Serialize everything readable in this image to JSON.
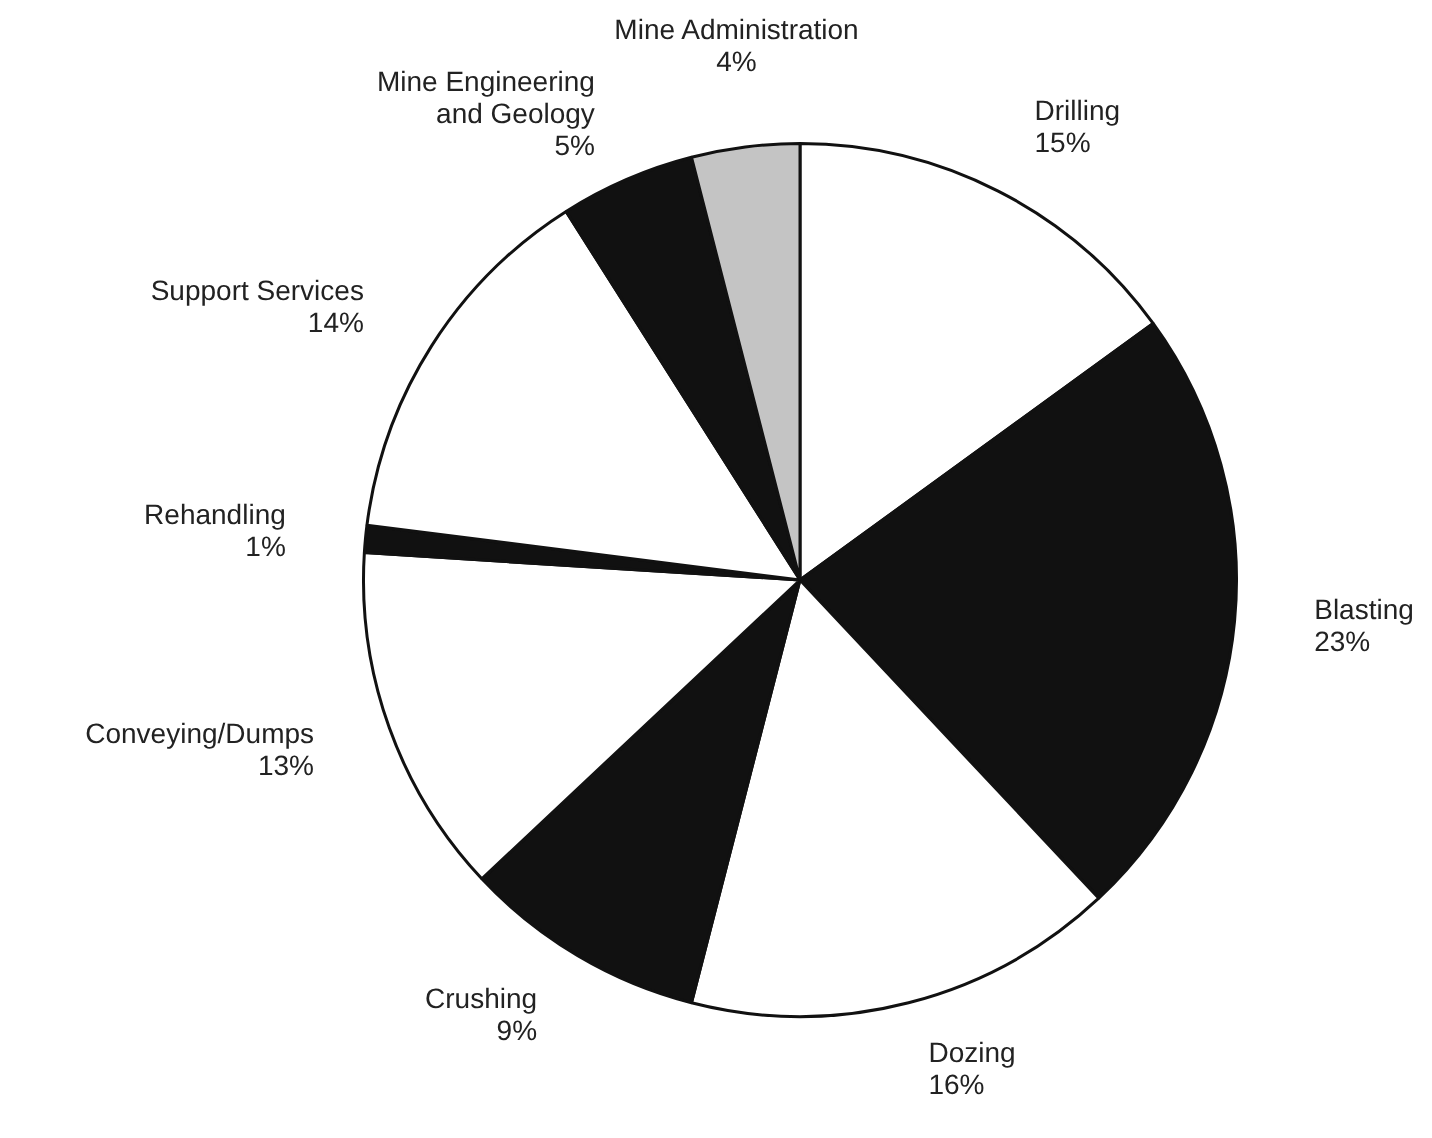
{
  "chart_data": {
    "type": "pie",
    "categories": [
      "Drilling",
      "Blasting",
      "Dozing",
      "Crushing",
      "Conveying/Dumps",
      "Rehandling",
      "Support Services",
      "Mine Engineering\nand Geology",
      "Mine Administration"
    ],
    "values": [
      15,
      23,
      16,
      9,
      13,
      1,
      14,
      5,
      4
    ],
    "value_labels": [
      "15%",
      "23%",
      "16%",
      "9%",
      "13%",
      "1%",
      "14%",
      "5%",
      "4%"
    ],
    "colors": [
      "#ffffff",
      "#111111",
      "#ffffff",
      "#111111",
      "#ffffff",
      "#111111",
      "#ffffff",
      "#111111",
      "#c4c4c4"
    ],
    "legend": false
  }
}
